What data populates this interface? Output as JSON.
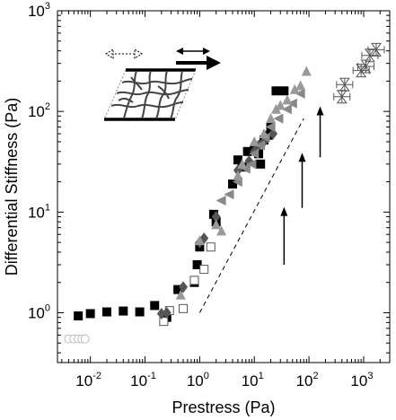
{
  "chart_data": {
    "type": "scatter",
    "title": "",
    "xlabel": "Prestress (Pa)",
    "ylabel": "Differential Stiffness (Pa)",
    "x_scale": "log",
    "y_scale": "log",
    "xlim": [
      0.0025,
      3000
    ],
    "ylim": [
      0.32,
      1000
    ],
    "grid": false,
    "legend": "none",
    "x_ticks": [
      {
        "base": "10",
        "exp": "-2",
        "value": 0.01
      },
      {
        "base": "10",
        "exp": "-1",
        "value": 0.1
      },
      {
        "base": "10",
        "exp": "0",
        "value": 1
      },
      {
        "base": "10",
        "exp": "1",
        "value": 10
      },
      {
        "base": "10",
        "exp": "2",
        "value": 100
      },
      {
        "base": "10",
        "exp": "3",
        "value": 1000
      }
    ],
    "y_ticks": [
      {
        "base": "10",
        "exp": "0",
        "value": 1
      },
      {
        "base": "10",
        "exp": "1",
        "value": 10
      },
      {
        "base": "10",
        "exp": "2",
        "value": 100
      },
      {
        "base": "10",
        "exp": "3",
        "value": 1000
      }
    ],
    "series": [
      {
        "marker": "filled-square",
        "color": "#000000",
        "points": [
          [
            0.006,
            0.93
          ],
          [
            0.01,
            0.98
          ],
          [
            0.02,
            1.02
          ],
          [
            0.04,
            1.04
          ],
          [
            0.08,
            1.02
          ],
          [
            0.15,
            1.18
          ],
          [
            0.25,
            0.9
          ],
          [
            0.4,
            1.7
          ],
          [
            0.8,
            2.0
          ],
          [
            0.9,
            3.0
          ],
          [
            1.0,
            4.5
          ],
          [
            1.8,
            9.5
          ],
          [
            2.0,
            8.0
          ],
          [
            4.0,
            19
          ],
          [
            5.0,
            33
          ],
          [
            6.0,
            28
          ],
          [
            7.5,
            40
          ],
          [
            10,
            42
          ],
          [
            12,
            38
          ],
          [
            13,
            30
          ],
          [
            15,
            52
          ],
          [
            18,
            58
          ],
          [
            20,
            70
          ],
          [
            25,
            160
          ],
          [
            35,
            160
          ]
        ]
      },
      {
        "marker": "open-square",
        "color": "#555555",
        "points": [
          [
            0.22,
            0.82
          ],
          [
            0.28,
            1.05
          ],
          [
            0.5,
            1.1
          ],
          [
            0.8,
            2.1
          ],
          [
            1.2,
            2.7
          ],
          [
            1.6,
            4.5
          ]
        ]
      },
      {
        "marker": "filled-diamond",
        "color": "#555555",
        "points": [
          [
            0.2,
            0.98
          ],
          [
            0.25,
            1.0
          ],
          [
            0.5,
            1.8
          ],
          [
            1.0,
            5.0
          ],
          [
            1.2,
            5.5
          ],
          [
            2.0,
            9.0
          ],
          [
            5.0,
            26
          ],
          [
            8.0,
            32
          ],
          [
            10,
            40
          ],
          [
            12,
            46
          ],
          [
            15,
            50
          ],
          [
            22,
            60
          ]
        ]
      },
      {
        "marker": "left-triangle",
        "color": "#888888",
        "points": [
          [
            2.5,
            13
          ],
          [
            3.5,
            15
          ],
          [
            5.0,
            20
          ],
          [
            7.0,
            27
          ],
          [
            9.0,
            30
          ],
          [
            10,
            38
          ],
          [
            13,
            46
          ],
          [
            16,
            55
          ],
          [
            20,
            70
          ],
          [
            28,
            85
          ],
          [
            40,
            105
          ],
          [
            50,
            120
          ],
          [
            70,
            150
          ]
        ]
      },
      {
        "marker": "up-triangle",
        "color": "#999999",
        "points": [
          [
            0.45,
            1.5
          ],
          [
            1.0,
            5.2
          ],
          [
            2.0,
            7.5
          ],
          [
            2.5,
            6.5
          ],
          [
            5.0,
            23
          ],
          [
            6.0,
            30
          ],
          [
            10,
            50
          ],
          [
            15,
            60
          ],
          [
            20,
            85
          ],
          [
            25,
            105
          ],
          [
            30,
            115
          ],
          [
            40,
            130
          ],
          [
            55,
            165
          ],
          [
            70,
            180
          ],
          [
            90,
            250
          ]
        ]
      },
      {
        "marker": "open-circle",
        "color": "#bbbbbb",
        "points": [
          [
            0.004,
            0.55
          ],
          [
            0.005,
            0.55
          ],
          [
            0.006,
            0.55
          ],
          [
            0.007,
            0.55
          ],
          [
            0.008,
            0.55
          ]
        ]
      },
      {
        "marker": "hourglass-errorbar",
        "color": "#555555",
        "points": [
          [
            400,
            140
          ],
          [
            450,
            185
          ],
          [
            900,
            255
          ],
          [
            1100,
            280
          ],
          [
            1300,
            360
          ],
          [
            1700,
            410
          ]
        ]
      }
    ],
    "reference_line": {
      "style": "dashed",
      "color": "#000000",
      "points": [
        [
          1,
          1
        ],
        [
          80,
          85
        ]
      ]
    },
    "annotations": [
      {
        "type": "arrow",
        "direction": "up",
        "x": 35,
        "y_from": 3,
        "y_to": 11
      },
      {
        "type": "arrow",
        "direction": "up",
        "x": 75,
        "y_from": 11,
        "y_to": 38
      },
      {
        "type": "arrow",
        "direction": "up",
        "x": 160,
        "y_from": 35,
        "y_to": 110
      },
      {
        "type": "schematic",
        "description": "sheared fiber network with shear arrows"
      }
    ]
  }
}
